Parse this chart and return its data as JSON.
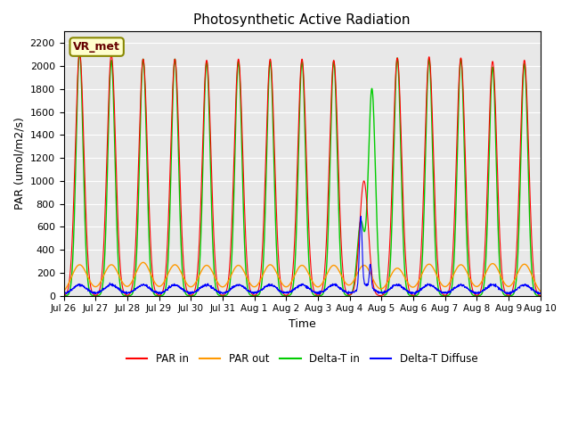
{
  "title": "Photosynthetic Active Radiation",
  "ylabel": "PAR (umol/m2/s)",
  "xlabel": "Time",
  "legend_label": "VR_met",
  "series_labels": [
    "PAR in",
    "PAR out",
    "Delta-T in",
    "Delta-T Diffuse"
  ],
  "series_colors": [
    "#ff0000",
    "#ff9900",
    "#00cc00",
    "#0000ff"
  ],
  "xtick_labels": [
    "Jul 26",
    "Jul 27",
    "Jul 28",
    "Jul 29",
    "Jul 30",
    "Jul 31",
    "Aug 1",
    "Aug 2",
    "Aug 3",
    "Aug 4",
    "Aug 5",
    "Aug 6",
    "Aug 7",
    "Aug 8",
    "Aug 9",
    "Aug 10"
  ],
  "ylim": [
    0,
    2300
  ],
  "yticks": [
    0,
    200,
    400,
    600,
    800,
    1000,
    1200,
    1400,
    1600,
    1800,
    2000,
    2200
  ],
  "n_days": 15,
  "background_color": "#e8e8e8",
  "legend_box_color": "#ffffcc",
  "legend_box_edge": "#888800"
}
